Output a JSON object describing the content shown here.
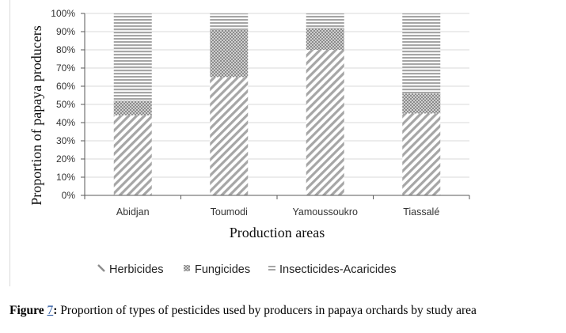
{
  "chart_data": {
    "type": "bar",
    "stacked": true,
    "percent": true,
    "categories": [
      "Abidjan",
      "Toumodi",
      "Yamoussoukro",
      "Tiassalé"
    ],
    "series": [
      {
        "name": "Herbicides",
        "values": [
          44,
          65,
          80,
          45
        ],
        "pattern": "diagonal-hatch"
      },
      {
        "name": "Fungicides",
        "values": [
          8,
          26,
          12,
          11
        ],
        "pattern": "dotted"
      },
      {
        "name": "Insecticides-Acaricides",
        "values": [
          48,
          9,
          8,
          44
        ],
        "pattern": "horizontal-lines"
      }
    ],
    "yticks": [
      "0%",
      "10%",
      "20%",
      "30%",
      "40%",
      "50%",
      "60%",
      "70%",
      "80%",
      "90%",
      "100%"
    ],
    "ylim": [
      0,
      100
    ],
    "xlabel": "Production areas",
    "ylabel": "Proportion of papaya producers",
    "grid": true,
    "legend_position": "bottom",
    "colors": {
      "pattern": "#a6a6a6",
      "axis": "#595959",
      "grid": "#d9d9d9"
    }
  },
  "caption": {
    "lead": "Figure",
    "number": "7",
    "separator": ":",
    "text": " Proportion of types of pesticides used by producers in papaya orchards by study area"
  }
}
